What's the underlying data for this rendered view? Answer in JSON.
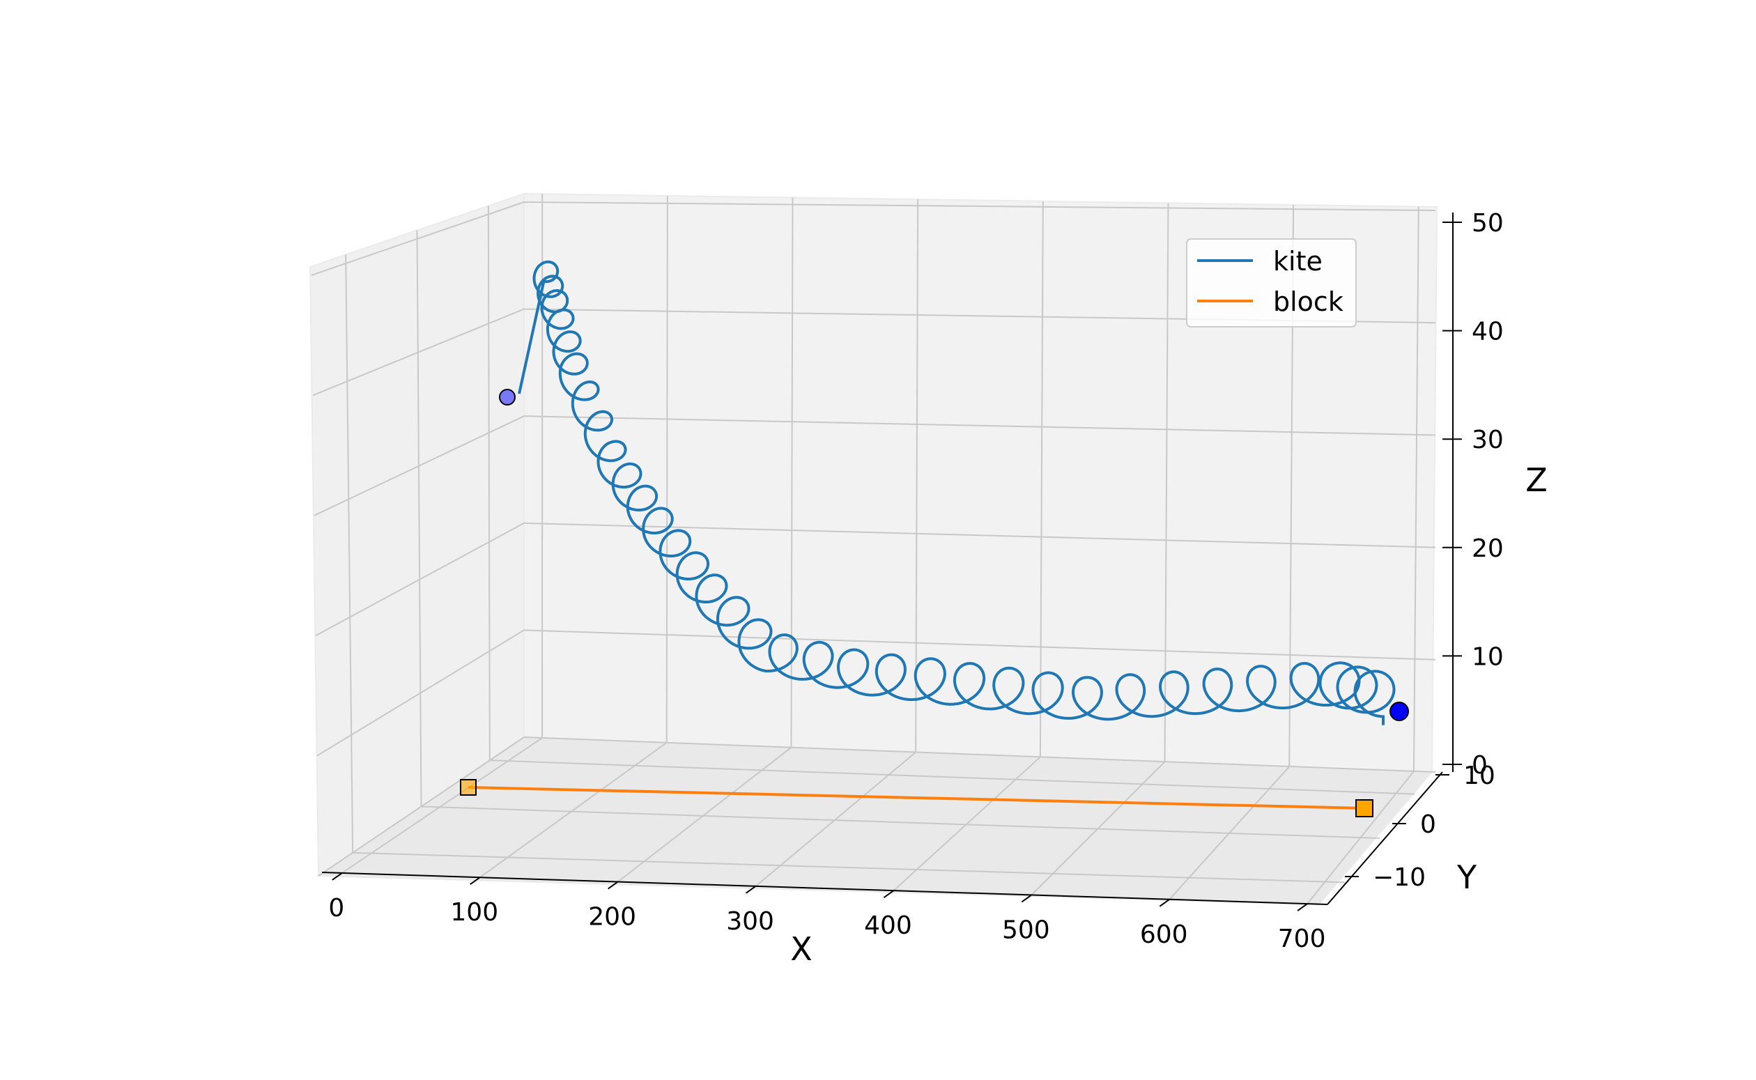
{
  "chart_data": {
    "type": "line",
    "projection": "3d",
    "xlabel": "X",
    "ylabel": "Y",
    "zlabel": "Z",
    "xlim": [
      0,
      700
    ],
    "ylim": [
      -15,
      15
    ],
    "zlim": [
      0,
      50
    ],
    "x_ticks": [
      "0",
      "100",
      "200",
      "300",
      "400",
      "500",
      "600",
      "700"
    ],
    "y_ticks": [
      "−10",
      "0",
      "10"
    ],
    "z_ticks": [
      "0",
      "10",
      "20",
      "30",
      "40",
      "50"
    ],
    "grid": true,
    "legend": {
      "position": "upper-right",
      "entries": [
        "kite",
        "block"
      ]
    },
    "series": [
      {
        "name": "kite",
        "color": "#1f77b4",
        "description": "helical trajectory",
        "start": {
          "x": 0,
          "y": 10,
          "z": 34
        },
        "end": {
          "x": 700,
          "y": 5,
          "z": 5
        },
        "center_path": [
          {
            "x": 20,
            "z": 44
          },
          {
            "x": 30,
            "z": 40
          },
          {
            "x": 45,
            "z": 34
          },
          {
            "x": 75,
            "z": 26
          },
          {
            "x": 110,
            "z": 20
          },
          {
            "x": 150,
            "z": 14
          },
          {
            "x": 200,
            "z": 8
          },
          {
            "x": 280,
            "z": 6
          },
          {
            "x": 370,
            "z": 5
          },
          {
            "x": 460,
            "z": 4
          },
          {
            "x": 560,
            "z": 5
          },
          {
            "x": 660,
            "z": 6
          },
          {
            "x": 700,
            "z": 5
          }
        ]
      },
      {
        "name": "block",
        "color": "#ff7f0e",
        "points": [
          {
            "x": 0,
            "y": 5,
            "z": 0
          },
          {
            "x": 700,
            "y": 5,
            "z": 0
          }
        ],
        "start_marker": "square",
        "end_marker": "square"
      }
    ],
    "markers": {
      "kite_start": {
        "shape": "circle",
        "color": "#0000ff",
        "alpha": 0.5
      },
      "kite_end": {
        "shape": "circle",
        "color": "#0000ff",
        "alpha": 1.0
      },
      "block_start": {
        "shape": "square",
        "color": "#ffa500",
        "alpha": 0.5
      },
      "block_end": {
        "shape": "square",
        "color": "#ffa500",
        "alpha": 1.0
      }
    }
  }
}
